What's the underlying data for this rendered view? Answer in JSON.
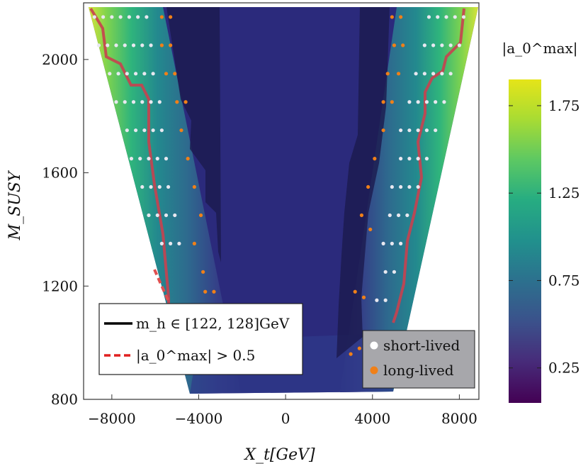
{
  "chart_data": {
    "type": "scatter",
    "title": "",
    "xlabel": "X_t[GeV]",
    "ylabel": "M_SUSY",
    "xlim": [
      -9300,
      8900
    ],
    "ylim": [
      800,
      2200
    ],
    "x_ticks": [
      "−8000",
      "−4000",
      "0",
      "4000",
      "8000"
    ],
    "x_tick_values": [
      -8000,
      -4000,
      0,
      4000,
      8000
    ],
    "y_ticks": [
      "800",
      "1200",
      "1600",
      "2000"
    ],
    "y_tick_values": [
      800,
      1200,
      1600,
      2000
    ],
    "colorbar": {
      "label": "|a_0^max|",
      "ticks": [
        "0.25",
        "0.75",
        "1.25",
        "1.75"
      ],
      "tick_values": [
        0.25,
        0.75,
        1.25,
        1.75
      ],
      "range": [
        0.05,
        1.9
      ],
      "colormap": "viridis"
    },
    "legend_left": {
      "entries": [
        {
          "label": "m_h ∈ [122, 128]GeV",
          "style": "solid",
          "color": "#000000"
        },
        {
          "label": "|a_0^max| > 0.5",
          "style": "dashed",
          "color": "#e02020"
        }
      ]
    },
    "legend_right": {
      "entries": [
        {
          "label": "short-lived",
          "color": "#e8e8f0"
        },
        {
          "label": "long-lived",
          "color": "#f08018"
        }
      ]
    },
    "series": [
      {
        "name": "short-lived",
        "color": "#e8e8f0",
        "points": [
          [
            -8800,
            2150
          ],
          [
            -8400,
            2150
          ],
          [
            -8000,
            2150
          ],
          [
            -7600,
            2150
          ],
          [
            -7200,
            2150
          ],
          [
            -6800,
            2150
          ],
          [
            -6400,
            2150
          ],
          [
            -8600,
            2050
          ],
          [
            -8200,
            2050
          ],
          [
            -7800,
            2050
          ],
          [
            -7400,
            2050
          ],
          [
            -7000,
            2050
          ],
          [
            -6600,
            2050
          ],
          [
            -6200,
            2050
          ],
          [
            -8100,
            1950
          ],
          [
            -7700,
            1950
          ],
          [
            -7300,
            1950
          ],
          [
            -6900,
            1950
          ],
          [
            -6500,
            1950
          ],
          [
            -6100,
            1950
          ],
          [
            -7800,
            1850
          ],
          [
            -7400,
            1850
          ],
          [
            -7000,
            1850
          ],
          [
            -6600,
            1850
          ],
          [
            -6200,
            1850
          ],
          [
            -5800,
            1850
          ],
          [
            -7300,
            1750
          ],
          [
            -6900,
            1750
          ],
          [
            -6500,
            1750
          ],
          [
            -6100,
            1750
          ],
          [
            -5700,
            1750
          ],
          [
            -7100,
            1650
          ],
          [
            -6700,
            1650
          ],
          [
            -6300,
            1650
          ],
          [
            -5900,
            1650
          ],
          [
            -5500,
            1650
          ],
          [
            -6600,
            1550
          ],
          [
            -6200,
            1550
          ],
          [
            -5800,
            1550
          ],
          [
            -5400,
            1550
          ],
          [
            -6300,
            1450
          ],
          [
            -5900,
            1450
          ],
          [
            -5500,
            1450
          ],
          [
            -5100,
            1450
          ],
          [
            -5700,
            1350
          ],
          [
            -5300,
            1350
          ],
          [
            -4900,
            1350
          ],
          [
            8200,
            2150
          ],
          [
            7800,
            2150
          ],
          [
            7400,
            2150
          ],
          [
            7000,
            2150
          ],
          [
            6600,
            2150
          ],
          [
            8000,
            2050
          ],
          [
            7600,
            2050
          ],
          [
            7200,
            2050
          ],
          [
            6800,
            2050
          ],
          [
            6400,
            2050
          ],
          [
            7600,
            1950
          ],
          [
            7200,
            1950
          ],
          [
            6800,
            1950
          ],
          [
            6400,
            1950
          ],
          [
            6000,
            1950
          ],
          [
            7300,
            1850
          ],
          [
            6900,
            1850
          ],
          [
            6500,
            1850
          ],
          [
            6100,
            1850
          ],
          [
            5700,
            1850
          ],
          [
            6900,
            1750
          ],
          [
            6500,
            1750
          ],
          [
            6100,
            1750
          ],
          [
            5700,
            1750
          ],
          [
            5300,
            1750
          ],
          [
            6500,
            1650
          ],
          [
            6100,
            1650
          ],
          [
            5700,
            1650
          ],
          [
            5300,
            1650
          ],
          [
            6100,
            1550
          ],
          [
            5700,
            1550
          ],
          [
            5300,
            1550
          ],
          [
            4900,
            1550
          ],
          [
            5600,
            1450
          ],
          [
            5200,
            1450
          ],
          [
            4800,
            1450
          ],
          [
            5300,
            1350
          ],
          [
            4900,
            1350
          ],
          [
            4500,
            1350
          ],
          [
            5000,
            1250
          ],
          [
            4600,
            1250
          ],
          [
            4200,
            1150
          ],
          [
            4600,
            1150
          ]
        ]
      },
      {
        "name": "long-lived",
        "color": "#f08018",
        "points": [
          [
            -5700,
            2150
          ],
          [
            -5300,
            2150
          ],
          [
            -5700,
            2050
          ],
          [
            -5300,
            2050
          ],
          [
            -5500,
            1950
          ],
          [
            -5100,
            1950
          ],
          [
            -5000,
            1850
          ],
          [
            -4600,
            1850
          ],
          [
            -4800,
            1750
          ],
          [
            -4500,
            1650
          ],
          [
            -4200,
            1550
          ],
          [
            -3900,
            1450
          ],
          [
            -4200,
            1350
          ],
          [
            -3800,
            1250
          ],
          [
            -3700,
            1180
          ],
          [
            -3300,
            1180
          ],
          [
            5300,
            2150
          ],
          [
            4900,
            2150
          ],
          [
            5400,
            2050
          ],
          [
            5000,
            2050
          ],
          [
            5200,
            1950
          ],
          [
            4700,
            1950
          ],
          [
            4900,
            1850
          ],
          [
            4500,
            1850
          ],
          [
            4500,
            1750
          ],
          [
            4100,
            1650
          ],
          [
            3800,
            1550
          ],
          [
            3500,
            1450
          ],
          [
            3900,
            1400
          ],
          [
            3200,
            1180
          ],
          [
            3600,
            1160
          ],
          [
            3000,
            960
          ],
          [
            3400,
            980
          ]
        ]
      }
    ]
  }
}
